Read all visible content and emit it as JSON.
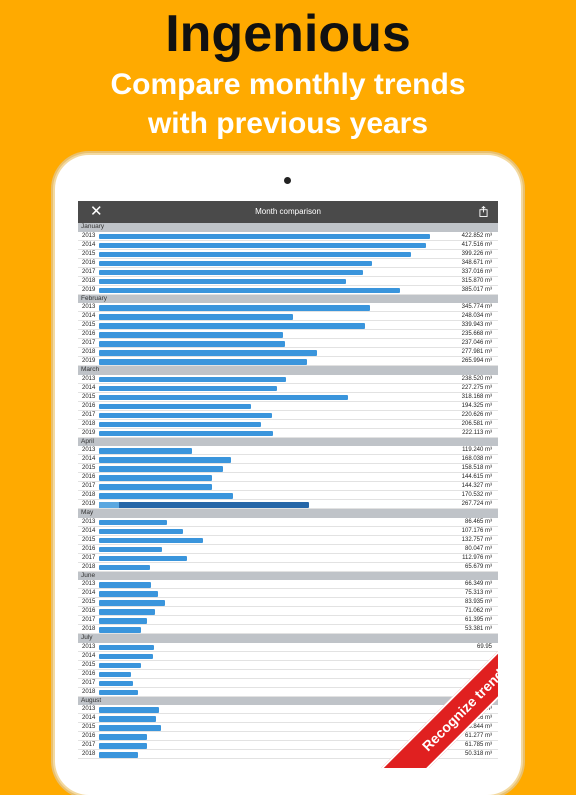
{
  "headline": "Ingenious",
  "subline1": "Compare monthly trends",
  "subline2": "with previous years",
  "nav": {
    "title": "Month comparison",
    "close_icon": "close-icon",
    "share_icon": "share-icon"
  },
  "ribbon": "Recognize trend",
  "colors": {
    "background": "#FFAA00",
    "bar": "#3a95dc",
    "bar_highlight": "#2566a8",
    "ribbon": "#e02020"
  },
  "bar_max_value": 460,
  "months": [
    {
      "name": "January",
      "rows": [
        {
          "year": "2013",
          "value": "422.852 m³",
          "amount": 422.852
        },
        {
          "year": "2014",
          "value": "417.516 m³",
          "amount": 417.516
        },
        {
          "year": "2015",
          "value": "399.226 m³",
          "amount": 399.226
        },
        {
          "year": "2016",
          "value": "348.671 m³",
          "amount": 348.671
        },
        {
          "year": "2017",
          "value": "337.016 m³",
          "amount": 337.016
        },
        {
          "year": "2018",
          "value": "315.870 m³",
          "amount": 315.87
        },
        {
          "year": "2019",
          "value": "385.017 m³",
          "amount": 385.017
        }
      ]
    },
    {
      "name": "February",
      "rows": [
        {
          "year": "2013",
          "value": "345.774 m³",
          "amount": 345.774
        },
        {
          "year": "2014",
          "value": "248.034 m³",
          "amount": 248.034
        },
        {
          "year": "2015",
          "value": "339.943 m³",
          "amount": 339.943
        },
        {
          "year": "2016",
          "value": "235.668 m³",
          "amount": 235.668
        },
        {
          "year": "2017",
          "value": "237.046 m³",
          "amount": 237.046
        },
        {
          "year": "2018",
          "value": "277.981 m³",
          "amount": 277.981
        },
        {
          "year": "2019",
          "value": "265.994 m³",
          "amount": 265.994
        }
      ]
    },
    {
      "name": "March",
      "rows": [
        {
          "year": "2013",
          "value": "238.520 m³",
          "amount": 238.52
        },
        {
          "year": "2014",
          "value": "227.275 m³",
          "amount": 227.275
        },
        {
          "year": "2015",
          "value": "318.168 m³",
          "amount": 318.168
        },
        {
          "year": "2016",
          "value": "194.325 m³",
          "amount": 194.325
        },
        {
          "year": "2017",
          "value": "220.626 m³",
          "amount": 220.626
        },
        {
          "year": "2018",
          "value": "206.581 m³",
          "amount": 206.581
        },
        {
          "year": "2019",
          "value": "222.113 m³",
          "amount": 222.113
        }
      ]
    },
    {
      "name": "April",
      "rows": [
        {
          "year": "2013",
          "value": "119.240 m³",
          "amount": 119.24
        },
        {
          "year": "2014",
          "value": "168.038 m³",
          "amount": 168.038
        },
        {
          "year": "2015",
          "value": "158.518 m³",
          "amount": 158.518
        },
        {
          "year": "2016",
          "value": "144.615 m³",
          "amount": 144.615
        },
        {
          "year": "2017",
          "value": "144.327 m³",
          "amount": 144.327
        },
        {
          "year": "2018",
          "value": "170.532 m³",
          "amount": 170.532
        },
        {
          "year": "2019",
          "value": "267.724 m³",
          "amount": 267.724,
          "highlight": true
        }
      ]
    },
    {
      "name": "May",
      "rows": [
        {
          "year": "2013",
          "value": "86.465 m³",
          "amount": 86.465
        },
        {
          "year": "2014",
          "value": "107.176 m³",
          "amount": 107.176
        },
        {
          "year": "2015",
          "value": "132.757 m³",
          "amount": 132.757
        },
        {
          "year": "2016",
          "value": "80.047 m³",
          "amount": 80.047
        },
        {
          "year": "2017",
          "value": "112.976 m³",
          "amount": 112.976
        },
        {
          "year": "2018",
          "value": "65.679 m³",
          "amount": 65.679
        }
      ]
    },
    {
      "name": "June",
      "rows": [
        {
          "year": "2013",
          "value": "66.349 m³",
          "amount": 66.349
        },
        {
          "year": "2014",
          "value": "75.313 m³",
          "amount": 75.313
        },
        {
          "year": "2015",
          "value": "83.935 m³",
          "amount": 83.935
        },
        {
          "year": "2016",
          "value": "71.062 m³",
          "amount": 71.062
        },
        {
          "year": "2017",
          "value": "61.395 m³",
          "amount": 61.395
        },
        {
          "year": "2018",
          "value": "53.381 m³",
          "amount": 53.381
        }
      ]
    },
    {
      "name": "July",
      "rows": [
        {
          "year": "2013",
          "value": "69.95",
          "amount": 69.95
        },
        {
          "year": "2014",
          "value": "",
          "amount": 69.5
        },
        {
          "year": "2015",
          "value": "",
          "amount": 53.0
        },
        {
          "year": "2016",
          "value": "",
          "amount": 41.0
        },
        {
          "year": "2017",
          "value": "",
          "amount": 43.0
        },
        {
          "year": "2018",
          "value": "068 m³",
          "amount": 50.0
        }
      ]
    },
    {
      "name": "August",
      "rows": [
        {
          "year": "2013",
          "value": "77.223 m³",
          "amount": 77.223
        },
        {
          "year": "2014",
          "value": "72.936 m³",
          "amount": 72.936
        },
        {
          "year": "2015",
          "value": "78.844 m³",
          "amount": 78.844
        },
        {
          "year": "2016",
          "value": "61.277 m³",
          "amount": 61.277
        },
        {
          "year": "2017",
          "value": "61.785 m³",
          "amount": 61.785
        },
        {
          "year": "2018",
          "value": "50.318 m³",
          "amount": 50.318
        }
      ]
    }
  ]
}
